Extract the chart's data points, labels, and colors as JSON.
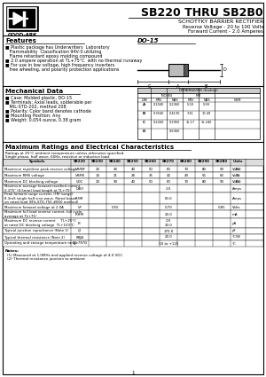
{
  "title": "SB220 THRU SB2B0",
  "subtitle1": "SCHOTTKY BARRIER RECTIFIER",
  "subtitle2": "Reverse Voltage - 20 to 100 Volts",
  "subtitle3": "Forward Current - 2.0 Amperes",
  "features_title": "Features",
  "do15_label": "DO-15",
  "mech_title": "Mechanical Data",
  "max_title": "Maximum Ratings and Electrical Characteristics",
  "max_note1": "Ratings at 25°C ambient temperature unless otherwise specified.",
  "max_note2": "Single phase, half wave, 60Hz, resistive or inductive load.",
  "col_headers": [
    "Symbols",
    "SB220",
    "SB230",
    "SB240",
    "SB250",
    "SB260",
    "SB270",
    "SB280",
    "SB290",
    "SB2B0",
    "Units"
  ],
  "notes": [
    "(1) Measured at 1.0MHz and applied reverse voltage of 4.0 VDC",
    "(2) Thermal resistance junction to ambient"
  ],
  "page_num": "1",
  "bg_color": "#ffffff",
  "logo_text": "GOOD-ARK"
}
